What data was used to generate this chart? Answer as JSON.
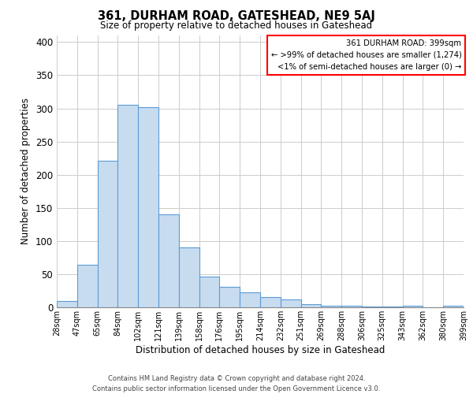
{
  "title": "361, DURHAM ROAD, GATESHEAD, NE9 5AJ",
  "subtitle": "Size of property relative to detached houses in Gateshead",
  "xlabel": "Distribution of detached houses by size in Gateshead",
  "ylabel": "Number of detached properties",
  "bar_values": [
    10,
    64,
    221,
    305,
    302,
    140,
    90,
    46,
    31,
    22,
    16,
    12,
    5,
    2,
    2,
    1,
    1,
    2,
    0,
    2
  ],
  "all_labels": [
    "28sqm",
    "47sqm",
    "65sqm",
    "84sqm",
    "102sqm",
    "121sqm",
    "139sqm",
    "158sqm",
    "176sqm",
    "195sqm",
    "214sqm",
    "232sqm",
    "251sqm",
    "269sqm",
    "288sqm",
    "306sqm",
    "325sqm",
    "343sqm",
    "362sqm",
    "380sqm",
    "399sqm"
  ],
  "bar_color": "#c8dcf0",
  "bar_edge_color": "#5b9bd5",
  "ylim": [
    0,
    410
  ],
  "yticks": [
    0,
    50,
    100,
    150,
    200,
    250,
    300,
    350,
    400
  ],
  "legend_title": "361 DURHAM ROAD: 399sqm",
  "legend_line1": "← >99% of detached houses are smaller (1,274)",
  "legend_line2": "<1% of semi-detached houses are larger (0) →",
  "legend_box_color": "red",
  "footer_line1": "Contains HM Land Registry data © Crown copyright and database right 2024.",
  "footer_line2": "Contains public sector information licensed under the Open Government Licence v3.0.",
  "background_color": "#ffffff",
  "grid_color": "#cccccc"
}
